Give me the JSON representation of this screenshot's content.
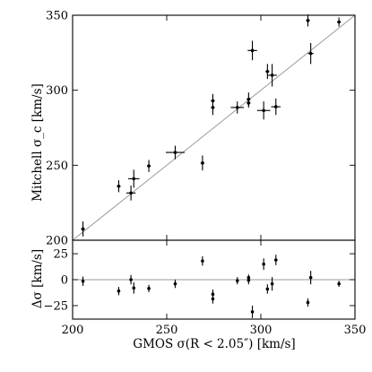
{
  "chart_data": [
    {
      "type": "scatter",
      "panel": "top",
      "title": "",
      "xlabel": "",
      "ylabel": "Mitchell σ_c [km/s]",
      "xlim": [
        200,
        350
      ],
      "ylim": [
        200,
        350
      ],
      "xticks": [
        200,
        250,
        300,
        350
      ],
      "yticks": [
        200,
        250,
        300,
        350
      ],
      "yticklabels": [
        "200",
        "250",
        "300",
        "350"
      ],
      "show_x_ticklabels": false,
      "grid": false,
      "legend": "none",
      "reference_line": {
        "from": [
          200,
          200
        ],
        "to": [
          350,
          350
        ],
        "label": ""
      },
      "series": [
        {
          "points": [
            {
              "x": 205.5,
              "y": 207.5,
              "xerr": 1.0,
              "yerr": 5.0
            },
            {
              "x": 224.5,
              "y": 236.0,
              "xerr": 1.0,
              "yerr": 4.0
            },
            {
              "x": 231.0,
              "y": 231.5,
              "xerr": 2.5,
              "yerr": 5.0
            },
            {
              "x": 232.5,
              "y": 241.0,
              "xerr": 3.0,
              "yerr": 6.0
            },
            {
              "x": 240.5,
              "y": 249.5,
              "xerr": 1.0,
              "yerr": 4.0
            },
            {
              "x": 254.5,
              "y": 258.5,
              "xerr": 5.0,
              "yerr": 4.5
            },
            {
              "x": 269.0,
              "y": 251.5,
              "xerr": 1.0,
              "yerr": 5.0
            },
            {
              "x": 274.5,
              "y": 288.5,
              "xerr": 1.0,
              "yerr": 5.0
            },
            {
              "x": 274.5,
              "y": 293.0,
              "xerr": 1.0,
              "yerr": 4.5
            },
            {
              "x": 287.5,
              "y": 288.5,
              "xerr": 3.5,
              "yerr": 4.0
            },
            {
              "x": 293.5,
              "y": 291.5,
              "xerr": 1.0,
              "yerr": 3.0
            },
            {
              "x": 293.5,
              "y": 294.0,
              "xerr": 1.0,
              "yerr": 4.5
            },
            {
              "x": 295.5,
              "y": 326.5,
              "xerr": 2.5,
              "yerr": 6.5
            },
            {
              "x": 301.5,
              "y": 286.5,
              "xerr": 3.5,
              "yerr": 6.0
            },
            {
              "x": 303.5,
              "y": 312.5,
              "xerr": 1.0,
              "yerr": 5.0
            },
            {
              "x": 306.0,
              "y": 310.0,
              "xerr": 2.5,
              "yerr": 7.5
            },
            {
              "x": 308.0,
              "y": 289.0,
              "xerr": 2.5,
              "yerr": 5.5
            },
            {
              "x": 325.0,
              "y": 346.5,
              "xerr": 1.0,
              "yerr": 4.0
            },
            {
              "x": 326.5,
              "y": 324.5,
              "xerr": 1.5,
              "yerr": 7.0
            },
            {
              "x": 341.5,
              "y": 345.5,
              "xerr": 1.0,
              "yerr": 3.0
            }
          ]
        }
      ]
    },
    {
      "type": "scatter",
      "panel": "bottom",
      "title": "",
      "xlabel": "GMOS σ(R < 2.05″) [km/s]",
      "ylabel": "Δσ [km/s]",
      "xlim": [
        200,
        350
      ],
      "ylim": [
        -38,
        38
      ],
      "xticks": [
        200,
        250,
        300,
        350
      ],
      "xticklabels": [
        "200",
        "250",
        "300",
        "350"
      ],
      "yticks": [
        -25,
        0,
        25
      ],
      "yticklabels": [
        "−25",
        "0",
        "25"
      ],
      "grid": false,
      "legend": "none",
      "reference_line": {
        "y": 0,
        "label": ""
      },
      "series": [
        {
          "points": [
            {
              "x": 205.5,
              "y": -1.5,
              "yerr": 4.5
            },
            {
              "x": 224.5,
              "y": -11.0,
              "yerr": 4.0
            },
            {
              "x": 231.0,
              "y": 0.0,
              "yerr": 4.5
            },
            {
              "x": 232.5,
              "y": -8.0,
              "yerr": 5.5
            },
            {
              "x": 240.5,
              "y": -8.5,
              "yerr": 3.5
            },
            {
              "x": 254.5,
              "y": -4.0,
              "yerr": 4.0
            },
            {
              "x": 269.0,
              "y": 18.0,
              "yerr": 4.5
            },
            {
              "x": 274.5,
              "y": -14.0,
              "yerr": 4.5
            },
            {
              "x": 274.5,
              "y": -18.5,
              "yerr": 4.5
            },
            {
              "x": 287.5,
              "y": -1.0,
              "yerr": 3.5
            },
            {
              "x": 293.5,
              "y": 2.0,
              "yerr": 3.0
            },
            {
              "x": 293.5,
              "y": -0.5,
              "yerr": 4.0
            },
            {
              "x": 295.5,
              "y": -31.0,
              "yerr": 6.0
            },
            {
              "x": 301.5,
              "y": 15.0,
              "yerr": 5.5
            },
            {
              "x": 303.5,
              "y": -9.0,
              "yerr": 4.5
            },
            {
              "x": 306.0,
              "y": -4.0,
              "yerr": 6.5
            },
            {
              "x": 308.0,
              "y": 19.0,
              "yerr": 5.0
            },
            {
              "x": 325.0,
              "y": -22.0,
              "yerr": 4.0
            },
            {
              "x": 326.5,
              "y": 2.0,
              "yerr": 6.5
            },
            {
              "x": 341.5,
              "y": -4.0,
              "yerr": 3.0
            }
          ]
        }
      ]
    }
  ]
}
